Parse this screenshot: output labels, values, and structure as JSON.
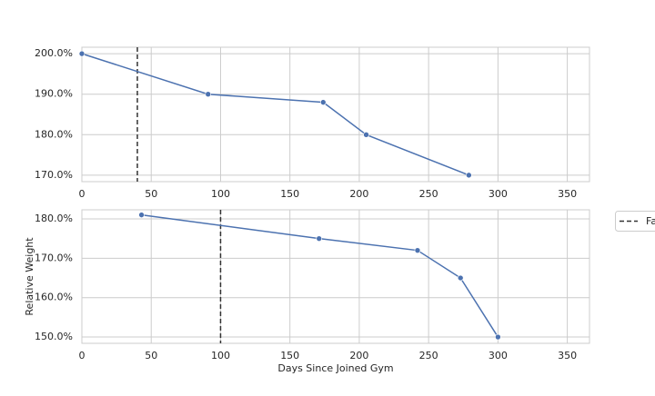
{
  "chart_data": [
    {
      "type": "line",
      "x": [
        0,
        91,
        174,
        205,
        279
      ],
      "series": [
        {
          "color": "#4c72b0",
          "values": [
            200,
            190,
            188,
            180,
            170
          ]
        }
      ],
      "vline": {
        "x": 40,
        "color": "#333333"
      },
      "xlim": [
        0,
        366
      ],
      "xticks": [
        0,
        50,
        100,
        150,
        200,
        250,
        300,
        350
      ],
      "ylim": [
        168.4,
        201.6
      ],
      "yticks": [
        {
          "value": 170,
          "label": "170.0%"
        },
        {
          "value": 180,
          "label": "180.0%"
        },
        {
          "value": 190,
          "label": "190.0%"
        },
        {
          "value": 200,
          "label": "200.0%"
        }
      ],
      "grid": true
    },
    {
      "type": "line",
      "x": [
        43,
        171,
        242,
        273,
        300
      ],
      "series": [
        {
          "color": "#4c72b0",
          "values": [
            181,
            175,
            172,
            165,
            150
          ]
        }
      ],
      "vline": {
        "x": 100,
        "color": "#333333",
        "name": "Fa"
      },
      "xlabel": "Days Since Joined Gym",
      "ylabel": "Relative Weight",
      "xlim": [
        0,
        366
      ],
      "xticks": [
        0,
        50,
        100,
        150,
        200,
        250,
        300,
        350
      ],
      "ylim": [
        148.4,
        182.3
      ],
      "yticks": [
        {
          "value": 150,
          "label": "150.0%"
        },
        {
          "value": 160,
          "label": "160.0%"
        },
        {
          "value": 170,
          "label": "170.0%"
        },
        {
          "value": 180,
          "label": "180.0%"
        }
      ],
      "grid": true
    }
  ]
}
